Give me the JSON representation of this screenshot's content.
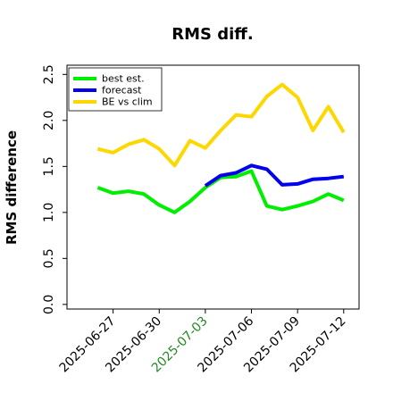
{
  "chart_data": {
    "type": "line",
    "title": "RMS diff.",
    "ylabel": "RMS difference",
    "xlabel": "",
    "ylim": [
      -0.05,
      2.6
    ],
    "yticks": [
      "0.0",
      "0.5",
      "1.0",
      "1.5",
      "2.0",
      "2.5"
    ],
    "xlim": [
      "2025-06-24",
      "2025-07-13"
    ],
    "xticks": [
      {
        "label": "2025-06-27",
        "color": "#000000"
      },
      {
        "label": "2025-06-30",
        "color": "#000000"
      },
      {
        "label": "2025-07-03",
        "color": "#228b22"
      },
      {
        "label": "2025-07-06",
        "color": "#000000"
      },
      {
        "label": "2025-07-09",
        "color": "#000000"
      },
      {
        "label": "2025-07-12",
        "color": "#000000"
      }
    ],
    "legend_location": "top-left",
    "grid": false,
    "series": [
      {
        "name": "best est.",
        "color": "#00ee00",
        "x": [
          "2025-06-26",
          "2025-06-27",
          "2025-06-28",
          "2025-06-29",
          "2025-06-30",
          "2025-07-01",
          "2025-07-02",
          "2025-07-03",
          "2025-07-04",
          "2025-07-05",
          "2025-07-06",
          "2025-07-07",
          "2025-07-08",
          "2025-07-09",
          "2025-07-10",
          "2025-07-11",
          "2025-07-12"
        ],
        "values": [
          1.27,
          1.21,
          1.23,
          1.2,
          1.08,
          1.0,
          1.12,
          1.27,
          1.38,
          1.39,
          1.45,
          1.07,
          1.03,
          1.07,
          1.12,
          1.2,
          1.13
        ]
      },
      {
        "name": "forecast",
        "color": "#0000ee",
        "x": [
          "2025-07-03",
          "2025-07-04",
          "2025-07-05",
          "2025-07-06",
          "2025-07-07",
          "2025-07-08",
          "2025-07-09",
          "2025-07-10",
          "2025-07-11",
          "2025-07-12"
        ],
        "values": [
          1.29,
          1.4,
          1.43,
          1.51,
          1.47,
          1.3,
          1.31,
          1.36,
          1.37,
          1.39
        ]
      },
      {
        "name": "BE vs clim",
        "color": "#ffd700",
        "x": [
          "2025-06-26",
          "2025-06-27",
          "2025-06-28",
          "2025-06-29",
          "2025-06-30",
          "2025-07-01",
          "2025-07-02",
          "2025-07-03",
          "2025-07-04",
          "2025-07-05",
          "2025-07-06",
          "2025-07-07",
          "2025-07-08",
          "2025-07-09",
          "2025-07-10",
          "2025-07-11",
          "2025-07-12"
        ],
        "values": [
          1.69,
          1.65,
          1.74,
          1.79,
          1.69,
          1.51,
          1.78,
          1.7,
          1.89,
          2.06,
          2.04,
          2.26,
          2.39,
          2.25,
          1.89,
          2.15,
          1.87
        ]
      }
    ]
  }
}
